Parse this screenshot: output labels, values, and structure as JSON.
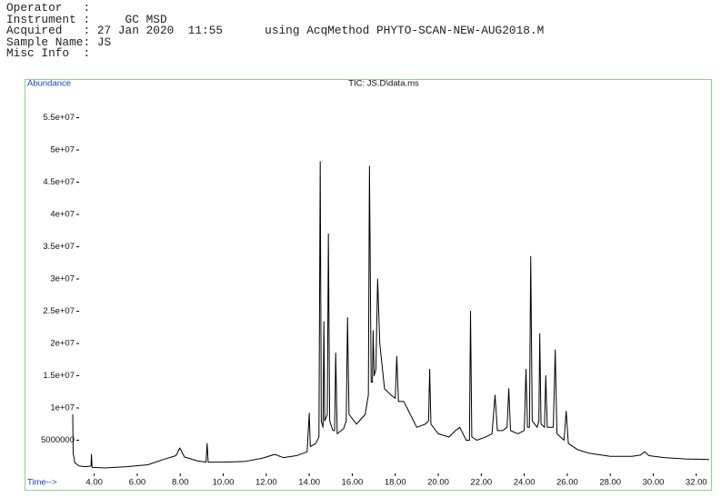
{
  "header": {
    "lines": [
      "Operator   :",
      "Instrument :     GC MSD",
      "Acquired   : 27 Jan 2020  11:55      using AcqMethod PHYTO-SCAN-NEW-AUG2018.M",
      "Sample Name: JS",
      "Misc Info  :"
    ]
  },
  "chart_data": {
    "type": "line",
    "title": "TIC: JS.D\\data.ms",
    "y_label": "Abundance",
    "x_label": "Time-->",
    "color": "#000000",
    "frame_color": "#86d886",
    "label_color": "#1a3fd4",
    "xlim": [
      3.0,
      32.6
    ],
    "ylim": [
      0,
      61000000
    ],
    "xticks": [
      {
        "value": 4,
        "label": "4.00"
      },
      {
        "value": 6,
        "label": "6.00"
      },
      {
        "value": 8,
        "label": "8.00"
      },
      {
        "value": 10,
        "label": "10.00"
      },
      {
        "value": 12,
        "label": "12.00"
      },
      {
        "value": 14,
        "label": "14.00"
      },
      {
        "value": 16,
        "label": "16.00"
      },
      {
        "value": 18,
        "label": "18.00"
      },
      {
        "value": 20,
        "label": "20.00"
      },
      {
        "value": 22,
        "label": "22.00"
      },
      {
        "value": 24,
        "label": "24.00"
      },
      {
        "value": 26,
        "label": "26.00"
      },
      {
        "value": 28,
        "label": "28.00"
      },
      {
        "value": 30,
        "label": "30.00"
      },
      {
        "value": 32,
        "label": "32.00"
      }
    ],
    "yticks": [
      5000000,
      {
        "value": 10000000,
        "label": "1e+07"
      },
      {
        "value": 15000000,
        "label": "1.5e+07"
      },
      {
        "value": 20000000,
        "label": "2e+07"
      },
      {
        "value": 25000000,
        "label": "2.5e+07"
      },
      {
        "value": 30000000,
        "label": "3e+07"
      },
      {
        "value": 35000000,
        "label": "3.5e+07"
      },
      {
        "value": 40000000,
        "label": "4e+07"
      },
      {
        "value": 45000000,
        "label": "4.5e+07"
      },
      {
        "value": 50000000,
        "label": "5e+07"
      },
      {
        "value": 55000000,
        "label": "5.5e+07"
      }
    ],
    "x": [
      3.0,
      3.02,
      3.1,
      3.3,
      3.6,
      3.85,
      3.87,
      3.9,
      4.5,
      5.5,
      6.5,
      7.2,
      7.8,
      7.98,
      8.2,
      8.8,
      9.2,
      9.25,
      9.3,
      10.0,
      11.0,
      11.8,
      12.4,
      12.8,
      13.4,
      13.9,
      14.0,
      14.05,
      14.3,
      14.45,
      14.51,
      14.56,
      14.64,
      14.68,
      14.72,
      14.84,
      14.89,
      14.95,
      15.1,
      15.18,
      15.23,
      15.3,
      15.6,
      15.72,
      15.78,
      15.85,
      16.2,
      16.6,
      16.75,
      16.8,
      16.88,
      16.94,
      16.97,
      17.02,
      17.1,
      17.18,
      17.28,
      17.5,
      17.8,
      18.0,
      18.07,
      18.15,
      18.4,
      18.7,
      19.0,
      19.4,
      19.55,
      19.6,
      19.66,
      20.0,
      20.5,
      20.8,
      21.0,
      21.3,
      21.45,
      21.5,
      21.56,
      21.8,
      22.2,
      22.5,
      22.64,
      22.75,
      23.0,
      23.2,
      23.28,
      23.36,
      23.7,
      24.0,
      24.08,
      24.15,
      24.24,
      24.3,
      24.37,
      24.6,
      24.68,
      24.72,
      24.78,
      24.94,
      25.0,
      25.07,
      25.35,
      25.44,
      25.52,
      25.85,
      25.95,
      26.05,
      26.5,
      27.0,
      28.0,
      29.0,
      29.4,
      29.6,
      29.8,
      30.5,
      31.5,
      32.6
    ],
    "values": [
      9000000,
      3000000,
      1500000,
      1000000,
      900000,
      1000000,
      2800000,
      800000,
      700000,
      900000,
      1200000,
      2000000,
      2600000,
      3800000,
      2400000,
      1800000,
      1600000,
      4500000,
      1600000,
      1600000,
      1700000,
      2200000,
      2800000,
      2300000,
      2600000,
      3200000,
      9200000,
      4000000,
      4500000,
      5500000,
      48200000,
      8000000,
      7000000,
      23400000,
      8000000,
      9000000,
      37000000,
      8000000,
      6500000,
      6500000,
      18500000,
      6000000,
      6800000,
      8000000,
      24000000,
      9000000,
      7500000,
      9000000,
      12000000,
      47500000,
      14000000,
      14000000,
      22000000,
      15000000,
      16000000,
      30000000,
      20000000,
      13000000,
      12000000,
      11500000,
      18000000,
      11000000,
      11000000,
      9000000,
      7000000,
      7500000,
      8000000,
      16000000,
      7500000,
      6000000,
      5500000,
      6500000,
      7000000,
      5000000,
      5000000,
      25000000,
      5500000,
      5000000,
      5500000,
      6000000,
      12000000,
      6500000,
      6500000,
      7000000,
      13000000,
      6500000,
      6000000,
      6500000,
      16000000,
      7000000,
      7000000,
      33500000,
      8000000,
      7000000,
      8000000,
      21500000,
      7500000,
      7000000,
      15000000,
      7000000,
      7000000,
      19000000,
      6000000,
      5000000,
      9500000,
      4500000,
      3500000,
      3000000,
      2500000,
      2500000,
      2700000,
      3200000,
      2600000,
      2300000,
      2100000,
      2000000
    ]
  }
}
